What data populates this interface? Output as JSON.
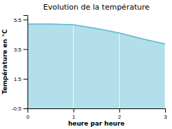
{
  "chart_data": {
    "type": "area",
    "title": "Evolution de la température",
    "xlabel": "heure par heure",
    "ylabel": "Température en °C",
    "x": [
      0,
      0.5,
      1.0,
      1.5,
      2.0,
      2.5,
      3.0
    ],
    "values": [
      5.2,
      5.2,
      5.15,
      4.9,
      4.6,
      4.2,
      3.85
    ],
    "color": "#55b8d0",
    "xlim": [
      0,
      3
    ],
    "ylim": [
      -0.5,
      5.8
    ],
    "xticks": [
      0,
      1,
      2,
      3
    ],
    "yticks": [
      -0.5,
      1.5,
      3.5,
      5.5
    ],
    "grid": "x"
  }
}
